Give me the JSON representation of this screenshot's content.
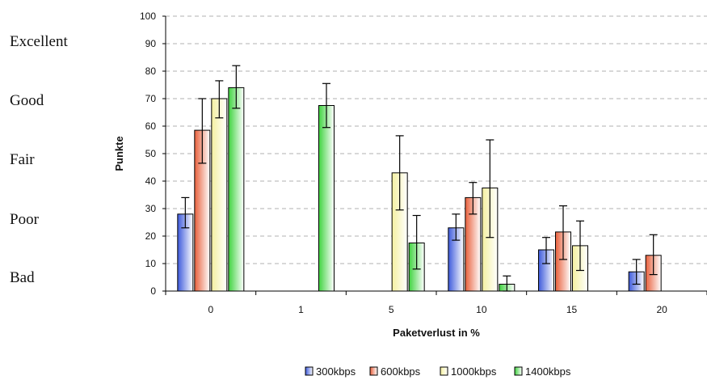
{
  "chart_data": {
    "type": "bar",
    "title": "",
    "xlabel": "Paketverlust in %",
    "ylabel": "Punkte",
    "ylim": [
      0,
      100
    ],
    "yticks": [
      0,
      10,
      20,
      30,
      40,
      50,
      60,
      70,
      80,
      90,
      100
    ],
    "grid": "horizontal dashed",
    "legend_position": "bottom",
    "categories": [
      "0",
      "1",
      "5",
      "10",
      "15",
      "20"
    ],
    "quality_scale": [
      "Excellent",
      "Good",
      "Fair",
      "Poor",
      "Bad"
    ],
    "series": [
      {
        "name": "300kbps",
        "color": "#3d5adb",
        "values": [
          28,
          null,
          null,
          23,
          15,
          7
        ],
        "err_low": [
          23,
          null,
          null,
          18.5,
          10,
          2.5
        ],
        "err_high": [
          34,
          null,
          null,
          28,
          19.5,
          11.5
        ]
      },
      {
        "name": "600kbps",
        "color": "#e8603c",
        "values": [
          58.5,
          null,
          null,
          34,
          21.5,
          13
        ],
        "err_low": [
          46.5,
          null,
          null,
          28,
          11.5,
          6
        ],
        "err_high": [
          70,
          null,
          null,
          39.5,
          31,
          20.5
        ]
      },
      {
        "name": "1000kbps",
        "color": "#f4f0a0",
        "values": [
          70,
          null,
          43,
          37.5,
          16.5,
          null
        ],
        "err_low": [
          63,
          null,
          29.5,
          19.5,
          7.5,
          null
        ],
        "err_high": [
          76.5,
          null,
          56.5,
          55,
          25.5,
          null
        ]
      },
      {
        "name": "1400kbps",
        "color": "#3fd33f",
        "values": [
          74,
          67.5,
          17.5,
          2.5,
          null,
          null
        ],
        "err_low": [
          66.5,
          59.5,
          8,
          0,
          null,
          null
        ],
        "err_high": [
          82,
          75.5,
          27.5,
          5.5,
          null,
          null
        ]
      }
    ]
  }
}
